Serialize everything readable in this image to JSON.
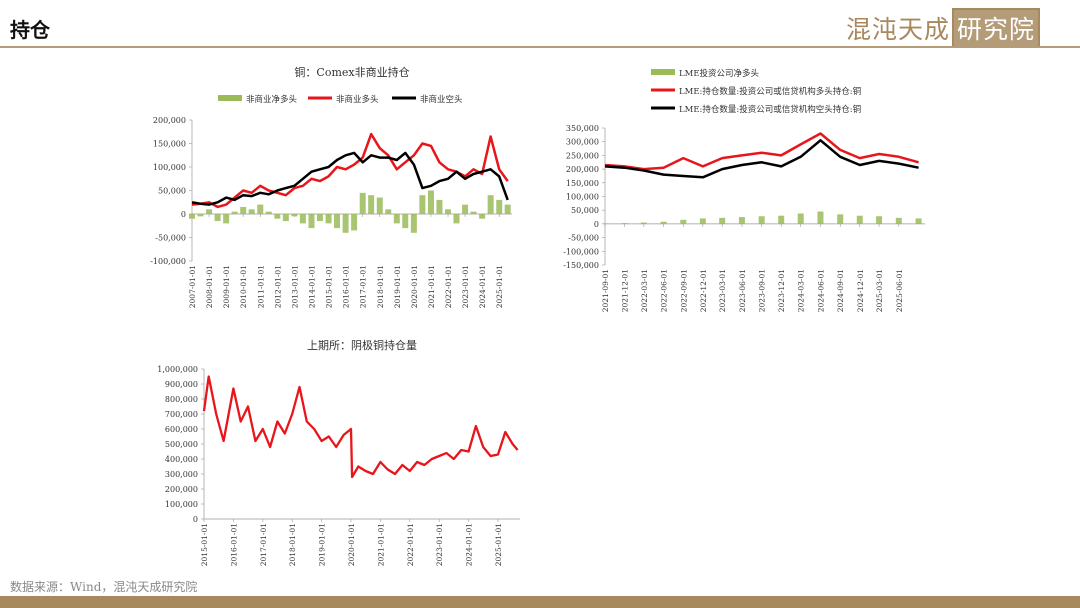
{
  "header": {
    "title": "持仓",
    "brand": {
      "part1": "混沌天成",
      "part2": "研究院"
    }
  },
  "footer": {
    "source": "数据来源：Wind，混沌天成研究院"
  },
  "colors": {
    "accent": "#a8895e",
    "green_series": "#9bbb59",
    "red_series": "#e8161b",
    "black_series": "#000000"
  },
  "chart_data": [
    {
      "id": "comex",
      "type": "line",
      "title": "铜：Comex非商业持仓",
      "legend_position": "top",
      "ylim": [
        -100000,
        200000
      ],
      "yticks": [
        -100000,
        -50000,
        0,
        50000,
        100000,
        150000,
        200000
      ],
      "ytick_labels": [
        "-100,000",
        "-50,000",
        "0",
        "50,000",
        "100,000",
        "150,000",
        "200,000"
      ],
      "x_range": [
        "2007-01-01",
        "2025-10-01"
      ],
      "xtick_labels": [
        "2007-01-01",
        "2008-01-01",
        "2009-01-01",
        "2010-01-01",
        "2011-01-01",
        "2012-01-01",
        "2013-01-01",
        "2014-01-01",
        "2015-01-01",
        "2016-01-01",
        "2017-01-01",
        "2018-01-01",
        "2019-01-01",
        "2020-01-01",
        "2021-01-01",
        "2022-01-01",
        "2023-01-01",
        "2024-01-01",
        "2025-01-01"
      ],
      "series": [
        {
          "name": "非商业净多头",
          "kind": "bar",
          "color": "#9bbb59",
          "x": [
            "2007-01-01",
            "2007-07-01",
            "2008-01-01",
            "2008-07-01",
            "2009-01-01",
            "2009-07-01",
            "2010-01-01",
            "2010-07-01",
            "2011-01-01",
            "2011-07-01",
            "2012-01-01",
            "2012-07-01",
            "2013-01-01",
            "2013-07-01",
            "2014-01-01",
            "2014-07-01",
            "2015-01-01",
            "2015-07-01",
            "2016-01-01",
            "2016-07-01",
            "2017-01-01",
            "2017-07-01",
            "2018-01-01",
            "2018-07-01",
            "2019-01-01",
            "2019-07-01",
            "2020-01-01",
            "2020-07-01",
            "2021-01-01",
            "2021-07-01",
            "2022-01-01",
            "2022-07-01",
            "2023-01-01",
            "2023-07-01",
            "2024-01-01",
            "2024-07-01",
            "2025-01-01",
            "2025-07-01"
          ],
          "values": [
            -10000,
            -5000,
            10000,
            -15000,
            -20000,
            5000,
            15000,
            10000,
            20000,
            5000,
            -10000,
            -15000,
            -5000,
            -20000,
            -30000,
            -15000,
            -20000,
            -30000,
            -40000,
            -35000,
            45000,
            40000,
            35000,
            10000,
            -20000,
            -30000,
            -40000,
            40000,
            50000,
            30000,
            10000,
            -20000,
            20000,
            5000,
            -10000,
            40000,
            30000,
            20000
          ]
        },
        {
          "name": "非商业多头",
          "kind": "line",
          "color": "#e8161b",
          "x": [
            "2007-01-01",
            "2007-07-01",
            "2008-01-01",
            "2008-07-01",
            "2009-01-01",
            "2009-07-01",
            "2010-01-01",
            "2010-07-01",
            "2011-01-01",
            "2011-07-01",
            "2012-01-01",
            "2012-07-01",
            "2013-01-01",
            "2013-07-01",
            "2014-01-01",
            "2014-07-01",
            "2015-01-01",
            "2015-07-01",
            "2016-01-01",
            "2016-07-01",
            "2017-01-01",
            "2017-07-01",
            "2018-01-01",
            "2018-07-01",
            "2019-01-01",
            "2019-07-01",
            "2020-01-01",
            "2020-07-01",
            "2021-01-01",
            "2021-07-01",
            "2022-01-01",
            "2022-07-01",
            "2023-01-01",
            "2023-07-01",
            "2024-01-01",
            "2024-07-01",
            "2025-01-01",
            "2025-07-01"
          ],
          "values": [
            20000,
            22000,
            25000,
            15000,
            20000,
            35000,
            50000,
            45000,
            60000,
            50000,
            45000,
            40000,
            55000,
            60000,
            75000,
            70000,
            80000,
            100000,
            95000,
            105000,
            120000,
            170000,
            140000,
            125000,
            95000,
            110000,
            125000,
            150000,
            145000,
            110000,
            95000,
            90000,
            80000,
            95000,
            85000,
            165000,
            95000,
            70000
          ]
        },
        {
          "name": "非商业空头",
          "kind": "line",
          "color": "#000000",
          "x": [
            "2007-01-01",
            "2007-07-01",
            "2008-01-01",
            "2008-07-01",
            "2009-01-01",
            "2009-07-01",
            "2010-01-01",
            "2010-07-01",
            "2011-01-01",
            "2011-07-01",
            "2012-01-01",
            "2012-07-01",
            "2013-01-01",
            "2013-07-01",
            "2014-01-01",
            "2014-07-01",
            "2015-01-01",
            "2015-07-01",
            "2016-01-01",
            "2016-07-01",
            "2017-01-01",
            "2017-07-01",
            "2018-01-01",
            "2018-07-01",
            "2019-01-01",
            "2019-07-01",
            "2020-01-01",
            "2020-07-01",
            "2021-01-01",
            "2021-07-01",
            "2022-01-01",
            "2022-07-01",
            "2023-01-01",
            "2023-07-01",
            "2024-01-01",
            "2024-07-01",
            "2025-01-01",
            "2025-07-01"
          ],
          "values": [
            25000,
            22000,
            20000,
            25000,
            35000,
            30000,
            40000,
            38000,
            45000,
            42000,
            50000,
            55000,
            60000,
            75000,
            90000,
            95000,
            100000,
            115000,
            125000,
            130000,
            110000,
            125000,
            120000,
            120000,
            115000,
            130000,
            105000,
            55000,
            60000,
            70000,
            75000,
            90000,
            75000,
            85000,
            90000,
            95000,
            80000,
            30000
          ]
        }
      ]
    },
    {
      "id": "lme",
      "type": "line",
      "title": "",
      "legend_position": "top",
      "ylim": [
        -150000,
        350000
      ],
      "yticks": [
        -150000,
        -100000,
        -50000,
        0,
        50000,
        100000,
        150000,
        200000,
        250000,
        300000,
        350000
      ],
      "ytick_labels": [
        "-150,000",
        "-100,000",
        "-50,000",
        "0",
        "50,000",
        "100,000",
        "150,000",
        "200,000",
        "250,000",
        "300,000",
        "350,000"
      ],
      "x_range": [
        "2021-09-01",
        "2025-10-01"
      ],
      "xtick_labels": [
        "2021-09-01",
        "2021-12-01",
        "2022-03-01",
        "2022-06-01",
        "2022-09-01",
        "2022-12-01",
        "2023-03-01",
        "2023-06-01",
        "2023-09-01",
        "2023-12-01",
        "2024-03-01",
        "2024-06-01",
        "2024-09-01",
        "2024-12-01",
        "2025-03-01",
        "2025-06-01"
      ],
      "series": [
        {
          "name": "LME投资公司净多头",
          "kind": "bar",
          "color": "#9bbb59",
          "x": [
            "2021-09-01",
            "2021-12-01",
            "2022-03-01",
            "2022-06-01",
            "2022-09-01",
            "2022-12-01",
            "2023-03-01",
            "2023-06-01",
            "2023-09-01",
            "2023-12-01",
            "2024-03-01",
            "2024-06-01",
            "2024-09-01",
            "2024-12-01",
            "2025-03-01",
            "2025-06-01",
            "2025-09-01"
          ],
          "values": [
            2000,
            3000,
            5000,
            8000,
            15000,
            20000,
            22000,
            25000,
            28000,
            30000,
            38000,
            45000,
            35000,
            30000,
            28000,
            22000,
            20000
          ]
        },
        {
          "name": "LME:持仓数量:投资公司或信贷机构多头持仓:铜",
          "kind": "line",
          "color": "#e8161b",
          "x": [
            "2021-09-01",
            "2021-12-01",
            "2022-03-01",
            "2022-06-01",
            "2022-09-01",
            "2022-12-01",
            "2023-03-01",
            "2023-06-01",
            "2023-09-01",
            "2023-12-01",
            "2024-03-01",
            "2024-06-01",
            "2024-09-01",
            "2024-12-01",
            "2025-03-01",
            "2025-06-01",
            "2025-09-01"
          ],
          "values": [
            215000,
            210000,
            200000,
            205000,
            240000,
            210000,
            240000,
            250000,
            260000,
            250000,
            290000,
            330000,
            270000,
            240000,
            255000,
            245000,
            225000
          ]
        },
        {
          "name": "LME:持仓数量:投资公司或信贷机构空头持仓:铜",
          "kind": "line",
          "color": "#000000",
          "x": [
            "2021-09-01",
            "2021-12-01",
            "2022-03-01",
            "2022-06-01",
            "2022-09-01",
            "2022-12-01",
            "2023-03-01",
            "2023-06-01",
            "2023-09-01",
            "2023-12-01",
            "2024-03-01",
            "2024-06-01",
            "2024-09-01",
            "2024-12-01",
            "2025-03-01",
            "2025-06-01",
            "2025-09-01"
          ],
          "values": [
            210000,
            205000,
            195000,
            180000,
            175000,
            170000,
            200000,
            215000,
            225000,
            210000,
            245000,
            305000,
            245000,
            215000,
            230000,
            220000,
            205000
          ]
        }
      ]
    },
    {
      "id": "shfe",
      "type": "line",
      "title": "上期所：阴极铜持仓量",
      "ylim": [
        0,
        1000000
      ],
      "yticks": [
        0,
        100000,
        200000,
        300000,
        400000,
        500000,
        600000,
        700000,
        800000,
        900000,
        1000000
      ],
      "ytick_labels": [
        "0",
        "100,000",
        "200,000",
        "300,000",
        "400,000",
        "500,000",
        "600,000",
        "700,000",
        "800,000",
        "900,000",
        "1,000,000"
      ],
      "x_range": [
        "2015-01-01",
        "2025-10-01"
      ],
      "xtick_labels": [
        "2015-01-01",
        "2016-01-01",
        "2017-01-01",
        "2018-01-01",
        "2019-01-01",
        "2020-01-01",
        "2021-01-01",
        "2022-01-01",
        "2023-01-01",
        "2024-01-01",
        "2025-01-01"
      ],
      "series": [
        {
          "name": "",
          "kind": "line",
          "color": "#e8161b",
          "x": [
            "2015-01-01",
            "2015-03-01",
            "2015-06-01",
            "2015-09-01",
            "2016-01-01",
            "2016-04-01",
            "2016-07-01",
            "2016-10-01",
            "2017-01-01",
            "2017-04-01",
            "2017-07-01",
            "2017-10-01",
            "2018-01-01",
            "2018-04-01",
            "2018-07-01",
            "2018-10-01",
            "2019-01-01",
            "2019-04-01",
            "2019-07-01",
            "2019-10-01",
            "2020-01-01",
            "2020-01-15",
            "2020-04-01",
            "2020-07-01",
            "2020-10-01",
            "2021-01-01",
            "2021-04-01",
            "2021-07-01",
            "2021-10-01",
            "2022-01-01",
            "2022-04-01",
            "2022-07-01",
            "2022-10-01",
            "2023-01-01",
            "2023-04-01",
            "2023-07-01",
            "2023-10-01",
            "2024-01-01",
            "2024-04-01",
            "2024-07-01",
            "2024-10-01",
            "2025-01-01",
            "2025-04-01",
            "2025-07-01",
            "2025-09-01"
          ],
          "values": [
            720000,
            950000,
            700000,
            520000,
            870000,
            650000,
            750000,
            520000,
            600000,
            480000,
            650000,
            570000,
            700000,
            880000,
            650000,
            600000,
            520000,
            550000,
            480000,
            560000,
            600000,
            280000,
            350000,
            320000,
            300000,
            380000,
            330000,
            300000,
            360000,
            320000,
            380000,
            360000,
            400000,
            420000,
            440000,
            400000,
            460000,
            450000,
            620000,
            480000,
            420000,
            430000,
            580000,
            500000,
            460000
          ]
        }
      ]
    }
  ]
}
